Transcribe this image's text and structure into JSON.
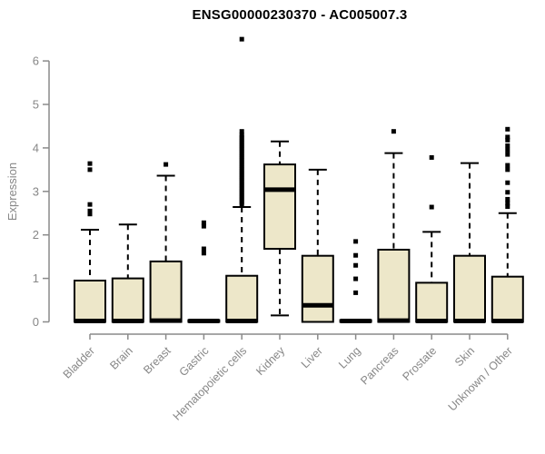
{
  "colors": {
    "background": "#ffffff",
    "box_fill": "#ede7c9",
    "box_border": "#000000",
    "median": "#000000",
    "whisker": "#000000",
    "outlier": "#000000",
    "axis_line": "#8a8a8a",
    "axis_text": "#878787",
    "title_text": "#000000"
  },
  "chart_data": {
    "type": "boxplot",
    "title": "ENSG00000230370 - AC005007.3",
    "xlabel": "",
    "ylabel": "Expression",
    "ylim": [
      0,
      6
    ],
    "yticks": [
      0,
      1,
      2,
      3,
      4,
      5,
      6
    ],
    "grid": false,
    "legend": null,
    "categories": [
      "Bladder",
      "Brain",
      "Breast",
      "Gastric",
      "Hematopoietic cells",
      "Kidney",
      "Liver",
      "Lung",
      "Pancreas",
      "Prostate",
      "Skin",
      "Unknown / Other"
    ],
    "series": [
      {
        "label": "Bladder",
        "whislo": 0,
        "q1": 0,
        "med": 0.02,
        "q3": 0.95,
        "whishi": 2.12,
        "outliers": [
          2.48,
          2.55,
          2.7,
          3.5,
          3.64
        ]
      },
      {
        "label": "Brain",
        "whislo": 0,
        "q1": 0,
        "med": 0.02,
        "q3": 1.0,
        "whishi": 2.24,
        "outliers": []
      },
      {
        "label": "Breast",
        "whislo": 0,
        "q1": 0,
        "med": 0.03,
        "q3": 1.39,
        "whishi": 3.36,
        "outliers": [
          3.62
        ]
      },
      {
        "label": "Gastric",
        "whislo": 0,
        "q1": 0,
        "med": 0.02,
        "q3": 0.04,
        "whishi": 0.05,
        "outliers": [
          1.58,
          1.68,
          2.2,
          2.28
        ]
      },
      {
        "label": "Hematopoietic cells",
        "whislo": 0,
        "q1": 0,
        "med": 0.02,
        "q3": 1.06,
        "whishi": 2.64,
        "outliers": [
          2.7,
          2.75,
          2.8,
          2.85,
          2.9,
          2.95,
          3.0,
          3.05,
          3.1,
          3.15,
          3.2,
          3.25,
          3.3,
          3.35,
          3.4,
          3.45,
          3.5,
          3.55,
          3.6,
          3.65,
          3.7,
          3.75,
          3.8,
          3.85,
          3.9,
          3.95,
          4.0,
          4.05,
          4.1,
          4.15,
          4.2,
          4.25,
          4.3,
          4.38,
          6.5
        ]
      },
      {
        "label": "Kidney",
        "whislo": 0.15,
        "q1": 1.68,
        "med": 3.04,
        "q3": 3.62,
        "whishi": 4.15,
        "outliers": []
      },
      {
        "label": "Liver",
        "whislo": 0,
        "q1": 0,
        "med": 0.38,
        "q3": 1.52,
        "whishi": 3.5,
        "outliers": []
      },
      {
        "label": "Lung",
        "whislo": 0,
        "q1": 0,
        "med": 0.02,
        "q3": 0.04,
        "whishi": 0.05,
        "outliers": [
          0.67,
          0.99,
          1.3,
          1.53,
          1.85
        ]
      },
      {
        "label": "Pancreas",
        "whislo": 0,
        "q1": 0,
        "med": 0.03,
        "q3": 1.66,
        "whishi": 3.88,
        "outliers": [
          4.38
        ]
      },
      {
        "label": "Prostate",
        "whislo": 0,
        "q1": 0,
        "med": 0.02,
        "q3": 0.9,
        "whishi": 2.07,
        "outliers": [
          2.64,
          3.78
        ]
      },
      {
        "label": "Skin",
        "whislo": 0,
        "q1": 0,
        "med": 0.02,
        "q3": 1.52,
        "whishi": 3.65,
        "outliers": []
      },
      {
        "label": "Unknown / Other",
        "whislo": 0,
        "q1": 0,
        "med": 0.02,
        "q3": 1.04,
        "whishi": 2.5,
        "outliers": [
          2.65,
          2.73,
          2.82,
          2.98,
          3.2,
          3.5,
          3.6,
          3.85,
          3.95,
          4.05,
          4.18,
          4.25,
          4.43
        ]
      }
    ]
  }
}
